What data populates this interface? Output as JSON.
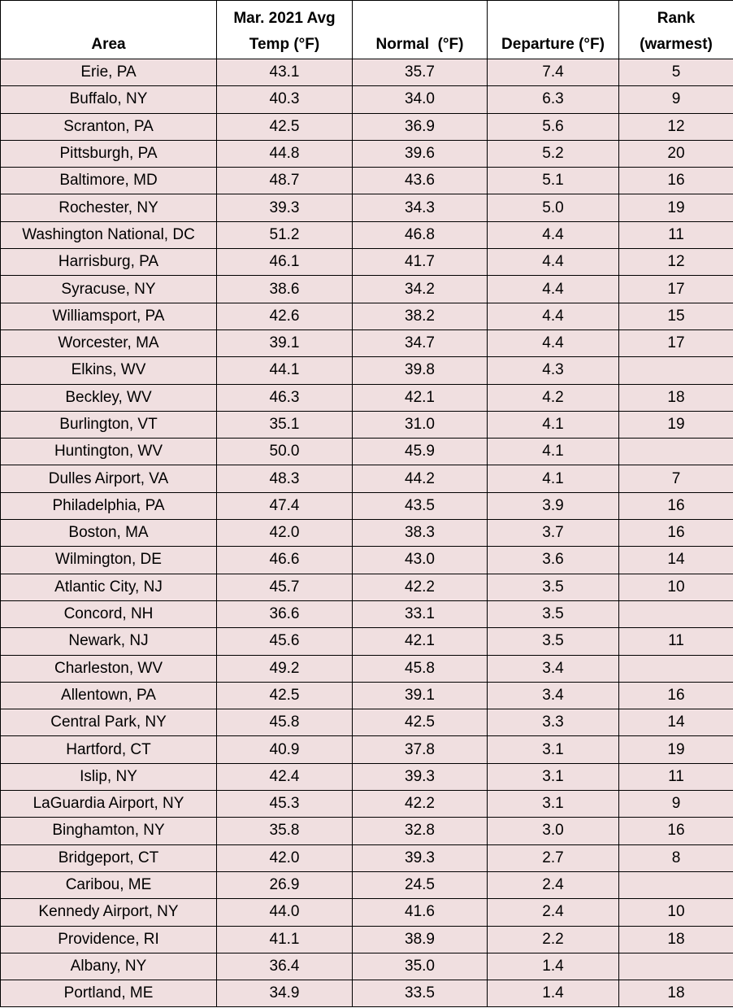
{
  "table": {
    "header": [
      [
        "Area"
      ],
      [
        "Mar. 2021 Avg",
        "Temp (°F)"
      ],
      [
        "Normal  (°F)"
      ],
      [
        "Departure (°F)"
      ],
      [
        "Rank",
        "(warmest)"
      ]
    ],
    "rows": [
      [
        "Erie, PA",
        "43.1",
        "35.7",
        "7.4",
        "5"
      ],
      [
        "Buffalo, NY",
        "40.3",
        "34.0",
        "6.3",
        "9"
      ],
      [
        "Scranton, PA",
        "42.5",
        "36.9",
        "5.6",
        "12"
      ],
      [
        "Pittsburgh, PA",
        "44.8",
        "39.6",
        "5.2",
        "20"
      ],
      [
        "Baltimore, MD",
        "48.7",
        "43.6",
        "5.1",
        "16"
      ],
      [
        "Rochester, NY",
        "39.3",
        "34.3",
        "5.0",
        "19"
      ],
      [
        "Washington National, DC",
        "51.2",
        "46.8",
        "4.4",
        "11"
      ],
      [
        "Harrisburg, PA",
        "46.1",
        "41.7",
        "4.4",
        "12"
      ],
      [
        "Syracuse, NY",
        "38.6",
        "34.2",
        "4.4",
        "17"
      ],
      [
        "Williamsport, PA",
        "42.6",
        "38.2",
        "4.4",
        "15"
      ],
      [
        "Worcester, MA",
        "39.1",
        "34.7",
        "4.4",
        "17"
      ],
      [
        "Elkins, WV",
        "44.1",
        "39.8",
        "4.3",
        null
      ],
      [
        "Beckley, WV",
        "46.3",
        "42.1",
        "4.2",
        "18"
      ],
      [
        "Burlington, VT",
        "35.1",
        "31.0",
        "4.1",
        "19"
      ],
      [
        "Huntington, WV",
        "50.0",
        "45.9",
        "4.1",
        null
      ],
      [
        "Dulles Airport, VA",
        "48.3",
        "44.2",
        "4.1",
        "7"
      ],
      [
        "Philadelphia, PA",
        "47.4",
        "43.5",
        "3.9",
        "16"
      ],
      [
        "Boston, MA",
        "42.0",
        "38.3",
        "3.7",
        "16"
      ],
      [
        "Wilmington, DE",
        "46.6",
        "43.0",
        "3.6",
        "14"
      ],
      [
        "Atlantic City, NJ",
        "45.7",
        "42.2",
        "3.5",
        "10"
      ],
      [
        "Concord, NH",
        "36.6",
        "33.1",
        "3.5",
        null
      ],
      [
        "Newark, NJ",
        "45.6",
        "42.1",
        "3.5",
        "11"
      ],
      [
        "Charleston, WV",
        "49.2",
        "45.8",
        "3.4",
        null
      ],
      [
        "Allentown, PA",
        "42.5",
        "39.1",
        "3.4",
        "16"
      ],
      [
        "Central Park, NY",
        "45.8",
        "42.5",
        "3.3",
        "14"
      ],
      [
        "Hartford, CT",
        "40.9",
        "37.8",
        "3.1",
        "19"
      ],
      [
        "Islip, NY",
        "42.4",
        "39.3",
        "3.1",
        "11"
      ],
      [
        "LaGuardia Airport, NY",
        "45.3",
        "42.2",
        "3.1",
        "9"
      ],
      [
        "Binghamton, NY",
        "35.8",
        "32.8",
        "3.0",
        "16"
      ],
      [
        "Bridgeport, CT",
        "42.0",
        "39.3",
        "2.7",
        "8"
      ],
      [
        "Caribou, ME",
        "26.9",
        "24.5",
        "2.4",
        null
      ],
      [
        "Kennedy Airport, NY",
        "44.0",
        "41.6",
        "2.4",
        "10"
      ],
      [
        "Providence, RI",
        "41.1",
        "38.9",
        "2.2",
        "18"
      ],
      [
        "Albany, NY",
        "36.4",
        "35.0",
        "1.4",
        null
      ],
      [
        "Portland, ME",
        "34.9",
        "33.5",
        "1.4",
        "18"
      ]
    ]
  }
}
